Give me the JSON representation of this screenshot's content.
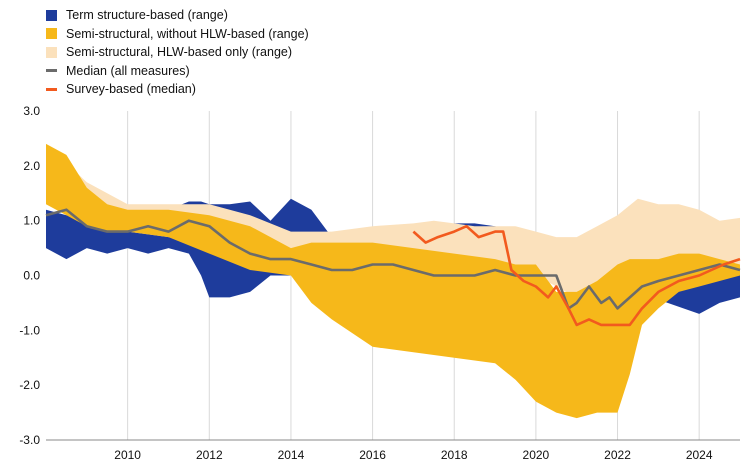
{
  "chart_data": {
    "type": "area",
    "x_range": [
      2008.0,
      2025.0
    ],
    "ylim": [
      -3.0,
      3.0
    ],
    "x_ticks": [
      "2010",
      "2012",
      "2014",
      "2016",
      "2018",
      "2020",
      "2022",
      "2024"
    ],
    "y_ticks": [
      "3.0",
      "2.0",
      "1.0",
      "0.0",
      "-1.0",
      "-2.0",
      "-3.0"
    ],
    "grid": "vertical",
    "legend_position": "top-left",
    "colors": {
      "term": "#1e3c9c",
      "semi": "#f6b81a",
      "hlw": "#fbe1bc",
      "median": "#6b6b6b",
      "survey": "#f25a1e"
    },
    "series": [
      {
        "name": "Term structure-based (range)",
        "style": "band",
        "color": "term",
        "x": [
          2008.0,
          2008.5,
          2009.0,
          2009.5,
          2010.0,
          2010.5,
          2011.0,
          2011.5,
          2011.8,
          2012.0,
          2012.5,
          2013.0,
          2013.5,
          2014.0,
          2014.5,
          2015.0,
          2016.0,
          2017.0,
          2017.6,
          2018.0,
          2018.5,
          2019.0,
          2024.0,
          2024.5,
          2025.0
        ],
        "low": [
          0.5,
          0.3,
          0.5,
          0.4,
          0.5,
          0.4,
          0.5,
          0.4,
          0.0,
          -0.4,
          -0.4,
          -0.3,
          0.0,
          0.0,
          0.1,
          0.5,
          0.8,
          0.5,
          0.6,
          0.7,
          0.6,
          0.6,
          -0.7,
          -0.5,
          -0.4
        ],
        "high": [
          1.2,
          1.1,
          1.0,
          1.1,
          1.1,
          1.1,
          1.2,
          1.35,
          1.35,
          1.3,
          1.3,
          1.35,
          1.0,
          1.4,
          1.2,
          0.7,
          0.85,
          0.9,
          0.9,
          0.95,
          0.95,
          0.9,
          -0.1,
          0.2,
          0.3
        ]
      },
      {
        "name": "Semi-structural, HLW-based only (range)",
        "style": "band",
        "color": "hlw",
        "x": [
          2008.0,
          2009.0,
          2010.0,
          2011.0,
          2012.0,
          2013.0,
          2014.0,
          2015.0,
          2016.0,
          2017.0,
          2017.5,
          2018.0,
          2018.5,
          2019.0,
          2019.5,
          2020.0,
          2020.5,
          2021.0,
          2021.5,
          2022.0,
          2022.5,
          2023.0,
          2023.5,
          2024.0,
          2024.5,
          2025.0
        ],
        "low": [
          1.4,
          1.0,
          0.8,
          0.7,
          0.6,
          0.4,
          0.3,
          0.3,
          0.3,
          0.2,
          0.2,
          0.2,
          0.1,
          0.0,
          0.0,
          0.0,
          -0.2,
          -0.4,
          -0.3,
          -0.2,
          0.0,
          0.0,
          0.0,
          0.0,
          0.0,
          0.0
        ],
        "high": [
          2.4,
          1.7,
          1.3,
          1.3,
          1.3,
          1.1,
          0.8,
          0.8,
          0.9,
          0.95,
          1.0,
          0.95,
          0.9,
          0.9,
          0.9,
          0.8,
          0.7,
          0.7,
          0.9,
          1.1,
          1.4,
          1.3,
          1.3,
          1.2,
          1.0,
          1.05
        ]
      },
      {
        "name": "Semi-structural, without HLW-based (range)",
        "style": "band",
        "color": "semi",
        "x": [
          2008.0,
          2008.5,
          2009.0,
          2009.5,
          2010.0,
          2011.0,
          2012.0,
          2013.0,
          2014.0,
          2014.5,
          2015.0,
          2016.0,
          2017.0,
          2018.0,
          2019.0,
          2019.5,
          2020.0,
          2020.5,
          2021.0,
          2021.5,
          2022.0,
          2022.3,
          2022.6,
          2023.0,
          2023.5,
          2024.0,
          2024.5,
          2025.0
        ],
        "low": [
          1.3,
          1.1,
          0.9,
          0.8,
          0.8,
          0.7,
          0.4,
          0.1,
          0.0,
          -0.5,
          -0.8,
          -1.3,
          -1.4,
          -1.5,
          -1.6,
          -1.9,
          -2.3,
          -2.5,
          -2.6,
          -2.5,
          -2.5,
          -1.8,
          -0.9,
          -0.6,
          -0.3,
          -0.2,
          -0.1,
          0.0
        ],
        "high": [
          2.4,
          2.2,
          1.6,
          1.3,
          1.2,
          1.2,
          1.1,
          0.9,
          0.5,
          0.6,
          0.6,
          0.6,
          0.5,
          0.4,
          0.3,
          0.2,
          0.2,
          -0.3,
          -0.3,
          -0.1,
          0.2,
          0.3,
          0.3,
          0.3,
          0.4,
          0.4,
          0.3,
          0.2
        ]
      },
      {
        "name": "Median (all measures)",
        "style": "line",
        "color": "median",
        "x": [
          2008.0,
          2008.5,
          2009.0,
          2009.5,
          2010.0,
          2010.5,
          2011.0,
          2011.5,
          2012.0,
          2012.5,
          2013.0,
          2013.5,
          2014.0,
          2014.5,
          2015.0,
          2015.5,
          2016.0,
          2016.5,
          2017.0,
          2017.5,
          2018.0,
          2018.5,
          2019.0,
          2019.5,
          2020.0,
          2020.5,
          2020.8,
          2021.0,
          2021.3,
          2021.6,
          2021.8,
          2022.0,
          2022.3,
          2022.6,
          2023.0,
          2023.5,
          2024.0,
          2024.5,
          2025.0
        ],
        "values": [
          1.1,
          1.2,
          0.9,
          0.8,
          0.8,
          0.9,
          0.8,
          1.0,
          0.9,
          0.6,
          0.4,
          0.3,
          0.3,
          0.2,
          0.1,
          0.1,
          0.2,
          0.2,
          0.1,
          0.0,
          0.0,
          0.0,
          0.1,
          0.0,
          0.0,
          0.0,
          -0.6,
          -0.5,
          -0.2,
          -0.5,
          -0.4,
          -0.6,
          -0.4,
          -0.2,
          -0.1,
          0.0,
          0.1,
          0.2,
          0.1
        ]
      },
      {
        "name": "Survey-based (median)",
        "style": "line",
        "color": "survey",
        "x": [
          2017.0,
          2017.3,
          2017.6,
          2018.0,
          2018.3,
          2018.6,
          2019.0,
          2019.2,
          2019.4,
          2019.7,
          2020.0,
          2020.3,
          2020.5,
          2020.8,
          2021.0,
          2021.3,
          2021.6,
          2022.0,
          2022.3,
          2022.6,
          2023.0,
          2023.5,
          2024.0,
          2024.3,
          2024.6,
          2025.0
        ],
        "values": [
          0.8,
          0.6,
          0.7,
          0.8,
          0.9,
          0.7,
          0.8,
          0.8,
          0.1,
          -0.1,
          -0.2,
          -0.4,
          -0.2,
          -0.6,
          -0.9,
          -0.8,
          -0.9,
          -0.9,
          -0.9,
          -0.6,
          -0.3,
          -0.1,
          0.0,
          0.1,
          0.2,
          0.3
        ]
      }
    ]
  }
}
